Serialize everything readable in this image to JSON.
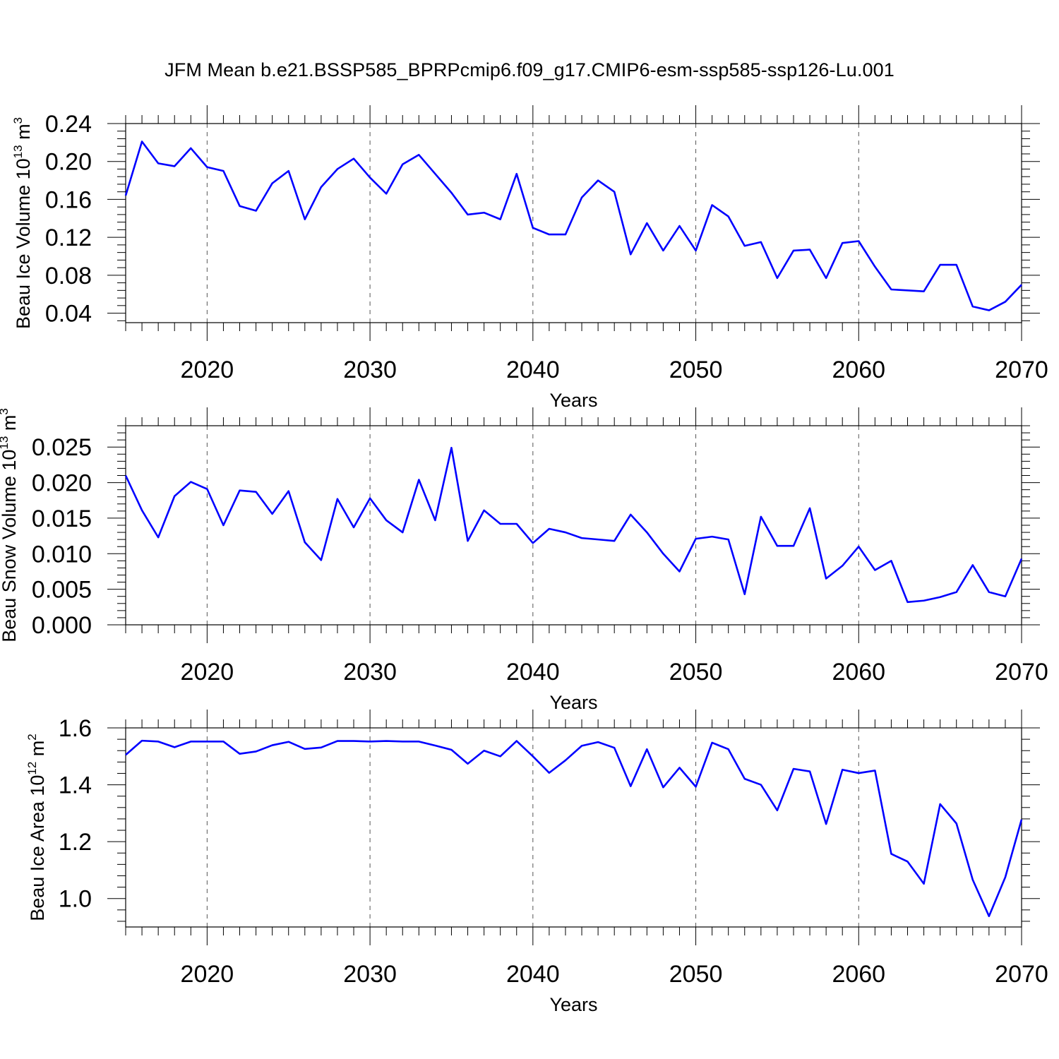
{
  "title": "JFM Mean b.e21.BSSP585_BPRPcmip6.f09_g17.CMIP6-esm-ssp585-ssp126-Lu.001",
  "colors": {
    "line": "#0000ff",
    "axis": "#000000",
    "grid": "#555555"
  },
  "chart_data": [
    {
      "type": "line",
      "title": "",
      "ylabel": "Beau Ice Volume 10",
      "ylabel_sup1": "13",
      "ylabel_mid": " m",
      "ylabel_sup2": "3",
      "xlabel": "Years",
      "xlim": [
        2015,
        2070
      ],
      "ylim": [
        0.03,
        0.24
      ],
      "yticks": [
        0.04,
        0.08,
        0.12,
        0.16,
        0.2,
        0.24
      ],
      "ytick_labels": [
        "0.04",
        "0.08",
        "0.12",
        "0.16",
        "0.20",
        "0.24"
      ],
      "xticks": [
        2020,
        2030,
        2040,
        2050,
        2060,
        2070
      ],
      "xtick_labels": [
        "2020",
        "2030",
        "2040",
        "2050",
        "2060",
        "2070"
      ],
      "x": [
        2015,
        2016,
        2017,
        2018,
        2019,
        2020,
        2021,
        2022,
        2023,
        2024,
        2025,
        2026,
        2027,
        2028,
        2029,
        2030,
        2031,
        2032,
        2033,
        2034,
        2035,
        2036,
        2037,
        2038,
        2039,
        2040,
        2041,
        2042,
        2043,
        2044,
        2045,
        2046,
        2047,
        2048,
        2049,
        2050,
        2051,
        2052,
        2053,
        2054,
        2055,
        2056,
        2057,
        2058,
        2059,
        2060,
        2061,
        2062,
        2063,
        2064,
        2065,
        2066,
        2067,
        2068,
        2069,
        2070
      ],
      "series": [
        {
          "name": "Beau Ice Volume",
          "values": [
            0.164,
            0.221,
            0.198,
            0.195,
            0.214,
            0.194,
            0.19,
            0.153,
            0.148,
            0.177,
            0.19,
            0.139,
            0.173,
            0.192,
            0.203,
            0.183,
            0.166,
            0.197,
            0.207,
            0.187,
            0.167,
            0.144,
            0.146,
            0.139,
            0.187,
            0.13,
            0.123,
            0.123,
            0.162,
            0.18,
            0.168,
            0.102,
            0.135,
            0.106,
            0.132,
            0.106,
            0.154,
            0.142,
            0.111,
            0.115,
            0.077,
            0.106,
            0.107,
            0.077,
            0.114,
            0.116,
            0.089,
            0.065,
            0.064,
            0.063,
            0.091,
            0.091,
            0.047,
            0.043,
            0.052,
            0.07
          ]
        }
      ]
    },
    {
      "type": "line",
      "title": "",
      "ylabel": "Beau Snow Volume 10",
      "ylabel_sup1": "13",
      "ylabel_mid": " m",
      "ylabel_sup2": "3",
      "xlabel": "Years",
      "xlim": [
        2015,
        2070
      ],
      "ylim": [
        0.0,
        0.028
      ],
      "yticks": [
        0.0,
        0.005,
        0.01,
        0.015,
        0.02,
        0.025
      ],
      "ytick_labels": [
        "0.000",
        "0.005",
        "0.010",
        "0.015",
        "0.020",
        "0.025"
      ],
      "xticks": [
        2020,
        2030,
        2040,
        2050,
        2060,
        2070
      ],
      "xtick_labels": [
        "2020",
        "2030",
        "2040",
        "2050",
        "2060",
        "2070"
      ],
      "x": [
        2015,
        2016,
        2017,
        2018,
        2019,
        2020,
        2021,
        2022,
        2023,
        2024,
        2025,
        2026,
        2027,
        2028,
        2029,
        2030,
        2031,
        2032,
        2033,
        2034,
        2035,
        2036,
        2037,
        2038,
        2039,
        2040,
        2041,
        2042,
        2043,
        2044,
        2045,
        2046,
        2047,
        2048,
        2049,
        2050,
        2051,
        2052,
        2053,
        2054,
        2055,
        2056,
        2057,
        2058,
        2059,
        2060,
        2061,
        2062,
        2063,
        2064,
        2065,
        2066,
        2067,
        2068,
        2069,
        2070
      ],
      "series": [
        {
          "name": "Beau Snow Volume",
          "values": [
            0.021,
            0.0161,
            0.0123,
            0.0181,
            0.0201,
            0.0191,
            0.014,
            0.0189,
            0.0187,
            0.0156,
            0.0188,
            0.0116,
            0.0091,
            0.0177,
            0.0137,
            0.0178,
            0.0147,
            0.013,
            0.0204,
            0.0147,
            0.0249,
            0.0118,
            0.0161,
            0.0142,
            0.0142,
            0.0115,
            0.0135,
            0.013,
            0.0122,
            0.012,
            0.0118,
            0.0155,
            0.013,
            0.01,
            0.0075,
            0.0121,
            0.0124,
            0.012,
            0.0043,
            0.0152,
            0.0111,
            0.0111,
            0.0164,
            0.0065,
            0.0083,
            0.011,
            0.0077,
            0.009,
            0.0032,
            0.0034,
            0.0039,
            0.0046,
            0.0084,
            0.0046,
            0.004,
            0.0093
          ]
        }
      ]
    },
    {
      "type": "line",
      "title": "",
      "ylabel": "Beau Ice Area 10",
      "ylabel_sup1": "12",
      "ylabel_mid": " m",
      "ylabel_sup2": "2",
      "xlabel": "Years",
      "xlim": [
        2015,
        2070
      ],
      "ylim": [
        0.9,
        1.6
      ],
      "yticks": [
        1.0,
        1.2,
        1.4,
        1.6
      ],
      "ytick_labels": [
        "1.0",
        "1.2",
        "1.4",
        "1.6"
      ],
      "xticks": [
        2020,
        2030,
        2040,
        2050,
        2060,
        2070
      ],
      "xtick_labels": [
        "2020",
        "2030",
        "2040",
        "2050",
        "2060",
        "2070"
      ],
      "x": [
        2015,
        2016,
        2017,
        2018,
        2019,
        2020,
        2021,
        2022,
        2023,
        2024,
        2025,
        2026,
        2027,
        2028,
        2029,
        2030,
        2031,
        2032,
        2033,
        2034,
        2035,
        2036,
        2037,
        2038,
        2039,
        2040,
        2041,
        2042,
        2043,
        2044,
        2045,
        2046,
        2047,
        2048,
        2049,
        2050,
        2051,
        2052,
        2053,
        2054,
        2055,
        2056,
        2057,
        2058,
        2059,
        2060,
        2061,
        2062,
        2063,
        2064,
        2065,
        2066,
        2067,
        2068,
        2069,
        2070
      ],
      "series": [
        {
          "name": "Beau Ice Area",
          "values": [
            1.505,
            1.555,
            1.552,
            1.532,
            1.552,
            1.552,
            1.552,
            1.509,
            1.517,
            1.539,
            1.551,
            1.526,
            1.531,
            1.554,
            1.554,
            1.552,
            1.554,
            1.552,
            1.552,
            1.538,
            1.523,
            1.474,
            1.52,
            1.5,
            1.554,
            1.5,
            1.442,
            1.486,
            1.537,
            1.55,
            1.53,
            1.395,
            1.525,
            1.391,
            1.46,
            1.393,
            1.548,
            1.525,
            1.421,
            1.4,
            1.31,
            1.456,
            1.447,
            1.262,
            1.453,
            1.441,
            1.45,
            1.157,
            1.13,
            1.052,
            1.332,
            1.264,
            1.066,
            0.938,
            1.075,
            1.278
          ]
        }
      ]
    }
  ]
}
